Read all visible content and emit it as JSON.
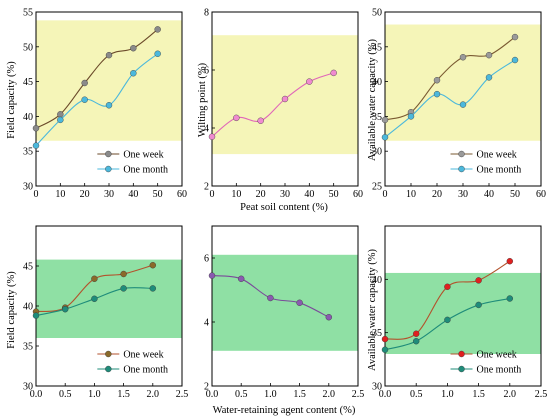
{
  "panel_labels": {
    "field_capacity": "Field capacity (%)",
    "wilting_point": "Wilting point (%)",
    "available_water": "Available water capacity (%)",
    "peat_xlabel": "Peat soil content (%)",
    "agent_xlabel": "Water-retaining agent content (%)"
  },
  "chart_data": [
    {
      "id": "fc_peat",
      "type": "line",
      "xlabel": "",
      "ylabel": "Field capacity (%)",
      "xlim": [
        0,
        60
      ],
      "ylim": [
        30,
        55
      ],
      "xticks": [
        0,
        10,
        20,
        30,
        40,
        50,
        60
      ],
      "yticks": [
        30,
        35,
        40,
        45,
        50,
        55
      ],
      "band": {
        "from": 36.5,
        "to": 53.8,
        "color": "#f5f5b8"
      },
      "legend": "bottom-right",
      "series": [
        {
          "name": "One week",
          "color": "#6b4a2a",
          "marker": "#8a8a8a",
          "x": [
            0,
            10,
            20,
            30,
            40,
            50
          ],
          "y": [
            38.3,
            40.3,
            44.8,
            48.8,
            49.8,
            52.5
          ]
        },
        {
          "name": "One month",
          "color": "#4bb8dc",
          "marker": "#4bb8dc",
          "x": [
            0,
            10,
            20,
            30,
            40,
            50
          ],
          "y": [
            35.8,
            39.5,
            42.4,
            41.6,
            46.2,
            49.0
          ]
        }
      ]
    },
    {
      "id": "wp_peat",
      "type": "line",
      "xlabel": "Peat soil content (%)",
      "ylabel": "Wilting point (%)",
      "xlim": [
        0,
        60
      ],
      "ylim": [
        2,
        8
      ],
      "xticks": [
        0,
        10,
        20,
        30,
        40,
        50,
        60
      ],
      "yticks": [
        2,
        4,
        6,
        8
      ],
      "band": {
        "from": 3.1,
        "to": 7.2,
        "color": "#f5f5b8"
      },
      "legend": "none",
      "series": [
        {
          "name": "",
          "color": "#e066b8",
          "marker": "#f08ad0",
          "x": [
            0,
            10,
            20,
            30,
            40,
            50
          ],
          "y": [
            3.7,
            4.35,
            4.25,
            5.0,
            5.6,
            5.9
          ]
        }
      ]
    },
    {
      "id": "aw_peat",
      "type": "line",
      "xlabel": "",
      "ylabel": "Available water capacity (%)",
      "xlim": [
        0,
        60
      ],
      "ylim": [
        25,
        50
      ],
      "xticks": [
        0,
        10,
        20,
        30,
        40,
        50,
        60
      ],
      "yticks": [
        25,
        30,
        35,
        40,
        45,
        50
      ],
      "band": {
        "from": 31.5,
        "to": 48.2,
        "color": "#f5f5b8"
      },
      "legend": "bottom-right",
      "series": [
        {
          "name": "One week",
          "color": "#7a5a32",
          "marker": "#9a9a9a",
          "x": [
            0,
            10,
            20,
            30,
            40,
            50
          ],
          "y": [
            34.5,
            35.6,
            40.2,
            43.5,
            43.8,
            46.4
          ]
        },
        {
          "name": "One month",
          "color": "#4bb8dc",
          "marker": "#4bb8dc",
          "x": [
            0,
            10,
            20,
            30,
            40,
            50
          ],
          "y": [
            32.0,
            35.0,
            38.2,
            36.7,
            40.6,
            43.1
          ]
        }
      ]
    },
    {
      "id": "fc_agent",
      "type": "line",
      "xlabel": "",
      "ylabel": "Field capacity (%)",
      "xlim": [
        0.0,
        2.5
      ],
      "ylim": [
        30,
        50
      ],
      "xticks": [
        0.0,
        0.5,
        1.0,
        1.5,
        2.0,
        2.5
      ],
      "yticks": [
        30,
        35,
        40,
        45
      ],
      "band": {
        "from": 36.0,
        "to": 45.8,
        "color": "#8fe0a4"
      },
      "legend": "bottom-right",
      "series": [
        {
          "name": "One week",
          "color": "#b3522c",
          "marker": "#8a6a2a",
          "x": [
            0.0,
            0.5,
            1.0,
            1.5,
            2.0
          ],
          "y": [
            39.3,
            39.8,
            43.4,
            44.0,
            45.1
          ]
        },
        {
          "name": "One month",
          "color": "#1f8c7a",
          "marker": "#1f8c7a",
          "x": [
            0.0,
            0.5,
            1.0,
            1.5,
            2.0
          ],
          "y": [
            38.8,
            39.6,
            40.9,
            42.2,
            42.2
          ]
        }
      ]
    },
    {
      "id": "wp_agent",
      "type": "line",
      "xlabel": "Water-retaining agent content (%)",
      "ylabel": "",
      "xlim": [
        0.0,
        2.5
      ],
      "ylim": [
        2,
        7
      ],
      "xticks": [
        0.0,
        0.5,
        1.0,
        1.5,
        2.0,
        2.5
      ],
      "yticks": [
        2,
        4,
        6
      ],
      "band": {
        "from": 3.1,
        "to": 6.1,
        "color": "#8fe0a4"
      },
      "legend": "none",
      "series": [
        {
          "name": "",
          "color": "#7a4a9a",
          "marker": "#8a5ab0",
          "x": [
            0.0,
            0.5,
            1.0,
            1.5,
            2.0
          ],
          "y": [
            5.45,
            5.35,
            4.75,
            4.6,
            4.15
          ]
        }
      ]
    },
    {
      "id": "aw_agent",
      "type": "line",
      "xlabel": "",
      "ylabel": "Available water capacity (%)",
      "xlim": [
        0.0,
        2.5
      ],
      "ylim": [
        30,
        45
      ],
      "xticks": [
        0.0,
        0.5,
        1.0,
        1.5,
        2.0,
        2.5
      ],
      "yticks": [
        30,
        35,
        40
      ],
      "band": {
        "from": 33.0,
        "to": 40.6,
        "color": "#8fe0a4"
      },
      "legend": "bottom-right",
      "series": [
        {
          "name": "One week",
          "color": "#b3522c",
          "marker": "#e02020",
          "x": [
            0.0,
            0.5,
            1.0,
            1.5,
            2.0
          ],
          "y": [
            34.4,
            34.9,
            39.3,
            39.9,
            41.7
          ]
        },
        {
          "name": "One month",
          "color": "#1f8c7a",
          "marker": "#1f8c7a",
          "x": [
            0.0,
            0.5,
            1.0,
            1.5,
            2.0
          ],
          "y": [
            33.4,
            34.2,
            36.2,
            37.6,
            38.2
          ]
        }
      ]
    }
  ]
}
